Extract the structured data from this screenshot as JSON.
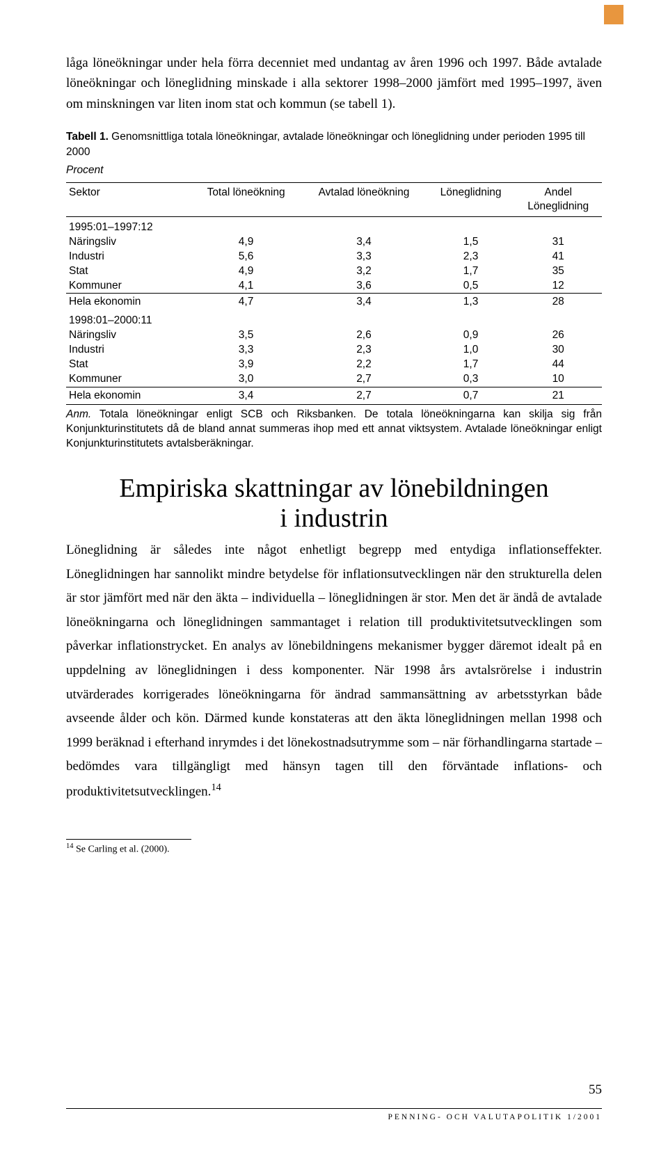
{
  "corner_mark_color": "#e8963e",
  "intro_paragraph": "låga löneökningar under hela förra decenniet med undantag av åren 1996 och 1997. Både avtalade löneökningar och löneglidning minskade i alla sektorer 1998–2000 jämfört med 1995–1997, även om minskningen var liten inom stat och kommun (se tabell 1).",
  "table": {
    "title_prefix": "Tabell 1.",
    "title_rest": " Genomsnittliga totala löneökningar, avtalade löneökningar och löneglidning under perioden 1995 till 2000",
    "subtitle": "Procent",
    "columns": [
      "Sektor",
      "Total löneökning",
      "Avtalad löneökning",
      "Löneglidning",
      "Andel\nLöneglidning"
    ],
    "period1_label": "1995:01–1997:12",
    "period1_rows": [
      [
        "Näringsliv",
        "4,9",
        "3,4",
        "1,5",
        "31"
      ],
      [
        "Industri",
        "5,6",
        "3,3",
        "2,3",
        "41"
      ],
      [
        "Stat",
        "4,9",
        "3,2",
        "1,7",
        "35"
      ],
      [
        "Kommuner",
        "4,1",
        "3,6",
        "0,5",
        "12"
      ]
    ],
    "period1_summary": [
      "Hela ekonomin",
      "4,7",
      "3,4",
      "1,3",
      "28"
    ],
    "period2_label": "1998:01–2000:11",
    "period2_rows": [
      [
        "Näringsliv",
        "3,5",
        "2,6",
        "0,9",
        "26"
      ],
      [
        "Industri",
        "3,3",
        "2,3",
        "1,0",
        "30"
      ],
      [
        "Stat",
        "3,9",
        "2,2",
        "1,7",
        "44"
      ],
      [
        "Kommuner",
        "3,0",
        "2,7",
        "0,3",
        "10"
      ]
    ],
    "period2_summary": [
      "Hela ekonomin",
      "3,4",
      "2,7",
      "0,7",
      "21"
    ],
    "note_prefix": "Anm.",
    "note_rest": " Totala löneökningar enligt SCB och Riksbanken. De totala löneökningarna kan skilja sig från Konjunkturinstitutets då de bland annat summeras ihop med ett annat viktsystem. Avtalade löneökningar enligt Konjunkturinstitutets avtalsberäkningar."
  },
  "heading": "Empiriska skattningar av lönebildningen i industrin",
  "body_para": "Löneglidning är således inte något enhetligt begrepp med entydiga inflationseffekter. Löneglidningen har sannolikt mindre betydelse för inflationsutvecklingen när den strukturella delen är stor jämfört med när den äkta – individuella – löneglidningen är stor. Men det är ändå de avtalade löneökningarna och löneglidningen sammantaget i relation till produktivitetsutvecklingen som påverkar inflationstrycket. En analys av lönebildningens mekanismer bygger däremot idealt på en uppdelning av löneglidningen i dess komponenter. När 1998 års avtalsrörelse i industrin utvärderades korrigerades löneökningarna för ändrad sammansättning av arbetsstyrkan både avseende ålder och kön. Därmed kunde konstateras att den äkta löneglidningen mellan 1998 och 1999 beräknad i efterhand inrymdes i det lönekostnadsutrymme som – när förhandlingarna startade – bedömdes vara tillgängligt med hänsyn tagen till den förväntade inflations- och produktivitetsutvecklingen.",
  "footnote_marker": "14",
  "footnote_text": " Se Carling et al. (2000).",
  "page_number": "55",
  "footer_text": "PENNING- OCH VALUTAPOLITIK 1/2001"
}
